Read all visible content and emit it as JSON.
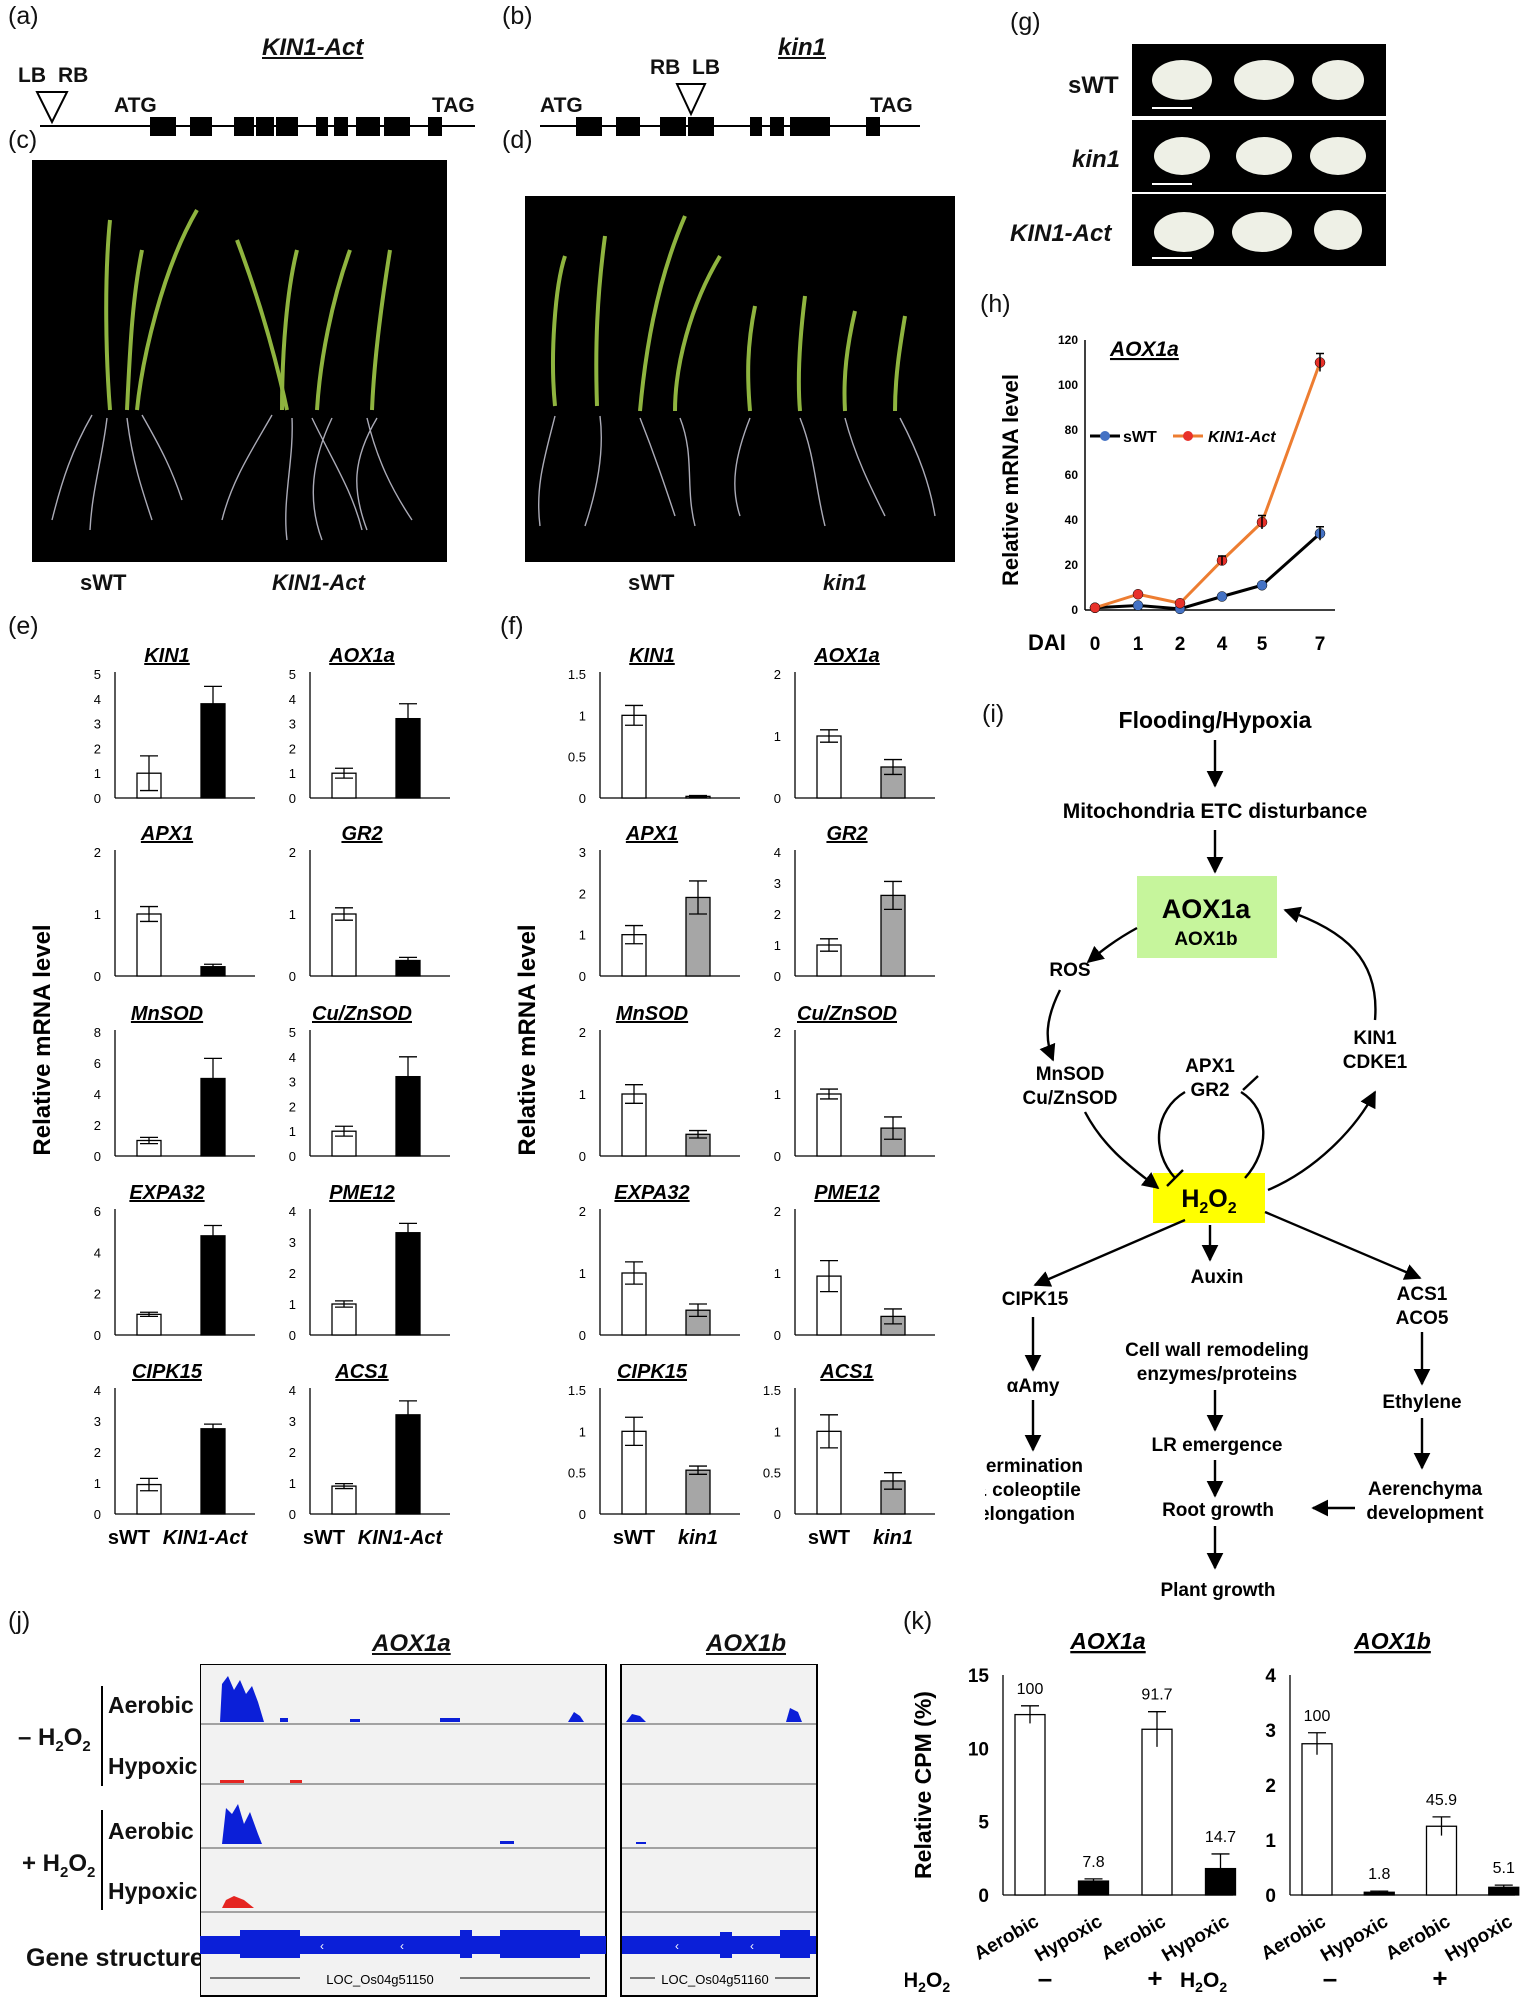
{
  "panels": {
    "a": "(a)",
    "b": "(b)",
    "c": "(c)",
    "d": "(d)",
    "e": "(e)",
    "f": "(f)",
    "g": "(g)",
    "h": "(h)",
    "i": "(i)",
    "j": "(j)",
    "k": "(k)"
  },
  "panel_a": {
    "title": "KIN1-Act",
    "lb": "LB",
    "rb": "RB",
    "atg": "ATG",
    "tag": "TAG"
  },
  "panel_b": {
    "title": "kin1",
    "lb": "LB",
    "rb": "RB",
    "atg": "ATG",
    "tag": "TAG"
  },
  "panel_c": {
    "left": "sWT",
    "right": "KIN1-Act"
  },
  "panel_d": {
    "left": "sWT",
    "right": "kin1"
  },
  "panel_g": {
    "rows": [
      "sWT",
      "kin1",
      "KIN1-Act"
    ]
  },
  "panel_h": {
    "gene": "AOX1a",
    "ylabel": "Relative mRNA level",
    "xlabel": "DAI",
    "legend": [
      "sWT",
      "KIN1-Act"
    ]
  },
  "panel_e": {
    "ylabel": "Relative mRNA level",
    "xticks": [
      "sWT",
      "KIN1-Act"
    ],
    "genes": [
      "KIN1",
      "AOX1a",
      "APX1",
      "GR2",
      "MnSOD",
      "Cu/ZnSOD",
      "EXPA32",
      "PME12",
      "CIPK15",
      "ACS1"
    ]
  },
  "panel_f": {
    "ylabel": "Relative mRNA level",
    "xticks": [
      "sWT",
      "kin1"
    ],
    "genes": [
      "KIN1",
      "AOX1a",
      "APX1",
      "GR2",
      "MnSOD",
      "Cu/ZnSOD",
      "EXPA32",
      "PME12",
      "CIPK15",
      "ACS1"
    ]
  },
  "panel_i": {
    "top": "Flooding/Hypoxia",
    "etc": "Mitochondria ETC disturbance",
    "aox1a": "AOX1a",
    "aox1b": "AOX1b",
    "ros": "ROS",
    "mnsod": "MnSOD",
    "cuznsod": "Cu/ZnSOD",
    "apx1": "APX1",
    "gr2": "GR2",
    "kin1": "KIN1",
    "cdke1": "CDKE1",
    "h2o2": "H",
    "h2o2_sub": "2",
    "h2o2_o": "O",
    "cipk15": "CIPK15",
    "auxin": "Auxin",
    "acs1": "ACS1",
    "aco5": "ACO5",
    "aamy": "αAmy",
    "cellwall1": "Cell wall remodeling",
    "cellwall2": "enzymes/proteins",
    "ethylene": "Ethylene",
    "germ1": "Germination",
    "germ2": "& coleoptile",
    "germ3": "elongation",
    "lr": "LR emergence",
    "root": "Root growth",
    "aer1": "Aerenchyma",
    "aer2": "development",
    "plant": "Plant growth"
  },
  "panel_j": {
    "title_a": "AOX1a",
    "title_b": "AOX1b",
    "minus": "– H",
    "plus": "+ H",
    "sub2": "2",
    "o2": "O",
    "aerobic": "Aerobic",
    "hypoxic": "Hypoxic",
    "gene_structure": "Gene structure",
    "locus_a": "LOC_Os04g51150",
    "locus_b": "LOC_Os04g51160"
  },
  "panel_k": {
    "ylabel": "Relative CPM (%)",
    "h2o2": "H",
    "h2o2_2": "2",
    "h2o2_o": "O",
    "minus": "–",
    "plus": "+",
    "cats": [
      "Aerobic",
      "Hypoxic",
      "Aerobic",
      "Hypoxic"
    ]
  },
  "chart_data": [
    {
      "type": "line",
      "panel": "h",
      "title": "AOX1a",
      "xlabel": "DAI",
      "ylabel": "Relative mRNA level",
      "x": [
        0,
        1,
        2,
        4,
        5,
        7
      ],
      "ylim": [
        0,
        120
      ],
      "yticks": [
        0,
        20,
        40,
        60,
        80,
        100,
        120
      ],
      "series": [
        {
          "name": "sWT",
          "color": "#000000",
          "marker": "#4472c4",
          "values": [
            1,
            2,
            0.5,
            6,
            11,
            34
          ]
        },
        {
          "name": "KIN1-Act",
          "color": "#ed7d31",
          "marker": "#e8312a",
          "values": [
            1,
            7,
            3,
            22,
            39,
            110
          ]
        }
      ]
    },
    {
      "type": "bar",
      "panel": "e",
      "categories": [
        "sWT",
        "KIN1-Act"
      ],
      "colors": [
        "#ffffff",
        "#000000"
      ],
      "subplots": [
        {
          "gene": "KIN1",
          "ylim": [
            0,
            5
          ],
          "yticks": [
            "0",
            "1",
            "2",
            "3",
            "4",
            "5"
          ],
          "values": [
            1,
            3.8
          ],
          "err": [
            0.7,
            0.7
          ]
        },
        {
          "gene": "AOX1a",
          "ylim": [
            0,
            5
          ],
          "yticks": [
            "0",
            "1",
            "2",
            "3",
            "4",
            "5"
          ],
          "values": [
            1,
            3.2
          ],
          "err": [
            0.2,
            0.6
          ]
        },
        {
          "gene": "APX1",
          "ylim": [
            0,
            2
          ],
          "yticks": [
            "0",
            "1",
            "2"
          ],
          "values": [
            1,
            0.15
          ],
          "err": [
            0.12,
            0.04
          ]
        },
        {
          "gene": "GR2",
          "ylim": [
            0,
            2
          ],
          "yticks": [
            "0",
            "1",
            "2"
          ],
          "values": [
            1,
            0.25
          ],
          "err": [
            0.1,
            0.05
          ]
        },
        {
          "gene": "MnSOD",
          "ylim": [
            0,
            8
          ],
          "yticks": [
            "0",
            "2",
            "4",
            "6",
            "8"
          ],
          "values": [
            1,
            5
          ],
          "err": [
            0.2,
            1.3
          ]
        },
        {
          "gene": "Cu/ZnSOD",
          "ylim": [
            0,
            5
          ],
          "yticks": [
            "0",
            "1",
            "2",
            "3",
            "4",
            "5"
          ],
          "values": [
            1,
            3.2
          ],
          "err": [
            0.2,
            0.8
          ]
        },
        {
          "gene": "EXPA32",
          "ylim": [
            0,
            6
          ],
          "yticks": [
            "0",
            "2",
            "4",
            "6"
          ],
          "values": [
            1,
            4.8
          ],
          "err": [
            0.1,
            0.5
          ]
        },
        {
          "gene": "PME12",
          "ylim": [
            0,
            4
          ],
          "yticks": [
            "0",
            "1",
            "2",
            "3",
            "4"
          ],
          "values": [
            1,
            3.3
          ],
          "err": [
            0.1,
            0.3
          ]
        },
        {
          "gene": "CIPK15",
          "ylim": [
            0,
            4
          ],
          "yticks": [
            "0",
            "1",
            "2",
            "3",
            "4"
          ],
          "values": [
            0.95,
            2.75
          ],
          "err": [
            0.2,
            0.15
          ]
        },
        {
          "gene": "ACS1",
          "ylim": [
            0,
            4
          ],
          "yticks": [
            "0",
            "1",
            "2",
            "3",
            "4"
          ],
          "values": [
            0.9,
            3.2
          ],
          "err": [
            0.08,
            0.45
          ]
        }
      ]
    },
    {
      "type": "bar",
      "panel": "f",
      "categories": [
        "sWT",
        "kin1"
      ],
      "colors": [
        "#ffffff",
        "#a6a6a6"
      ],
      "subplots": [
        {
          "gene": "KIN1",
          "ylim": [
            0,
            1.5
          ],
          "yticks": [
            "0",
            "0.5",
            "1",
            "1.5"
          ],
          "values": [
            1,
            0.02
          ],
          "err": [
            0.12,
            0.01
          ]
        },
        {
          "gene": "AOX1a",
          "ylim": [
            0,
            2
          ],
          "yticks": [
            "0",
            "1",
            "2"
          ],
          "values": [
            1,
            0.5
          ],
          "err": [
            0.1,
            0.12
          ]
        },
        {
          "gene": "APX1",
          "ylim": [
            0,
            3
          ],
          "yticks": [
            "0",
            "1",
            "2",
            "3"
          ],
          "values": [
            1,
            1.9
          ],
          "err": [
            0.22,
            0.4
          ]
        },
        {
          "gene": "GR2",
          "ylim": [
            0,
            4
          ],
          "yticks": [
            "0",
            "1",
            "2",
            "3",
            "4"
          ],
          "values": [
            1,
            2.6
          ],
          "err": [
            0.2,
            0.45
          ]
        },
        {
          "gene": "MnSOD",
          "ylim": [
            0,
            2
          ],
          "yticks": [
            "0",
            "1",
            "2"
          ],
          "values": [
            1,
            0.35
          ],
          "err": [
            0.15,
            0.06
          ]
        },
        {
          "gene": "Cu/ZnSOD",
          "ylim": [
            0,
            2
          ],
          "yticks": [
            "0",
            "1",
            "2"
          ],
          "values": [
            1,
            0.45
          ],
          "err": [
            0.08,
            0.18
          ]
        },
        {
          "gene": "EXPA32",
          "ylim": [
            0,
            2
          ],
          "yticks": [
            "0",
            "1",
            "2"
          ],
          "values": [
            1,
            0.4
          ],
          "err": [
            0.18,
            0.1
          ]
        },
        {
          "gene": "PME12",
          "ylim": [
            0,
            2
          ],
          "yticks": [
            "0",
            "1",
            "2"
          ],
          "values": [
            0.95,
            0.3
          ],
          "err": [
            0.25,
            0.12
          ]
        },
        {
          "gene": "CIPK15",
          "ylim": [
            0,
            1.5
          ],
          "yticks": [
            "0",
            "0.5",
            "1",
            "1.5"
          ],
          "values": [
            1,
            0.53
          ],
          "err": [
            0.17,
            0.05
          ]
        },
        {
          "gene": "ACS1",
          "ylim": [
            0,
            1.5
          ],
          "yticks": [
            "0",
            "0.5",
            "1",
            "1.5"
          ],
          "values": [
            1,
            0.4
          ],
          "err": [
            0.2,
            0.1
          ]
        }
      ]
    },
    {
      "type": "bar",
      "panel": "k",
      "categories": [
        "Aerobic",
        "Hypoxic",
        "Aerobic",
        "Hypoxic"
      ],
      "ylabel": "Relative CPM (%)",
      "subplots": [
        {
          "gene": "AOX1a",
          "ylim": [
            0,
            15
          ],
          "yticks": [
            "0",
            "5",
            "10",
            "15"
          ],
          "values": [
            12.3,
            0.95,
            11.3,
            1.8
          ],
          "err": [
            0.6,
            0.15,
            1.2,
            1.0
          ],
          "labels": [
            "100",
            "7.8",
            "91.7",
            "14.7"
          ],
          "colors": [
            "#ffffff",
            "#000000",
            "#ffffff",
            "#000000"
          ]
        },
        {
          "gene": "AOX1b",
          "ylim": [
            0,
            4
          ],
          "yticks": [
            "0",
            "1",
            "2",
            "3",
            "4"
          ],
          "values": [
            2.75,
            0.05,
            1.25,
            0.14
          ],
          "err": [
            0.2,
            0.02,
            0.17,
            0.04
          ],
          "labels": [
            "100",
            "1.8",
            "45.9",
            "5.1"
          ],
          "colors": [
            "#ffffff",
            "#000000",
            "#ffffff",
            "#000000"
          ]
        }
      ]
    }
  ]
}
